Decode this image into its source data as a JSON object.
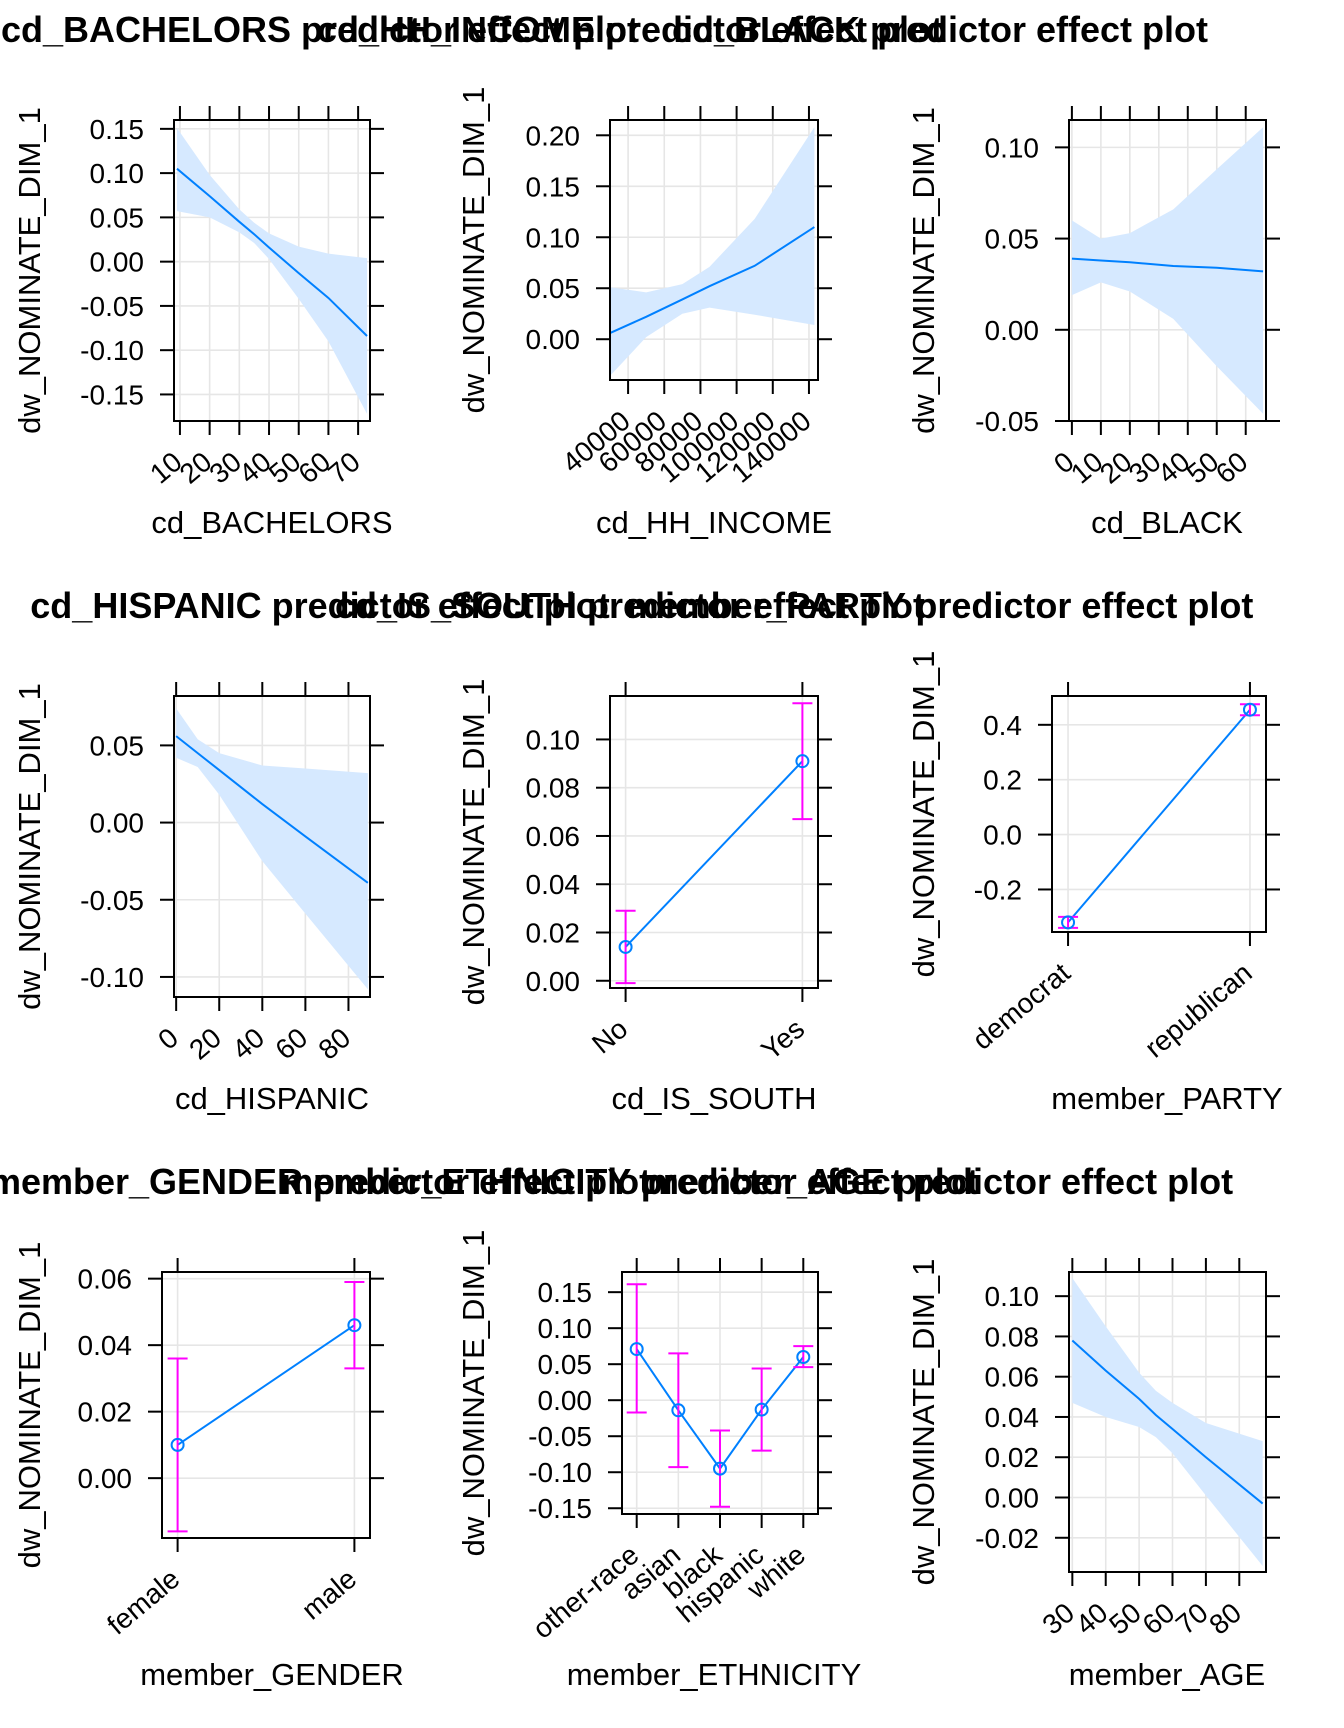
{
  "colors": {
    "line": "#0080ff",
    "band": "#d6e9ff",
    "error_bar": "#ff00ff",
    "point": "#0080ff",
    "grid": "#e6e6e6"
  },
  "chart_data": [
    {
      "type": "line",
      "title": "cd_BACHELORS predictor effect plot",
      "xlabel": "cd_BACHELORS",
      "ylabel": "dw_NOMINATE_DIM_1",
      "xlim": [
        8,
        74
      ],
      "ylim": [
        -0.18,
        0.16
      ],
      "x_ticks": [
        10,
        20,
        30,
        40,
        50,
        60,
        70
      ],
      "x_tick_labels": [
        "10",
        "20",
        "30",
        "40",
        "50",
        "60",
        "70"
      ],
      "y_ticks": [
        -0.15,
        -0.1,
        -0.05,
        0.0,
        0.05,
        0.1,
        0.15
      ],
      "y_tick_labels": [
        "-0.15",
        "-0.10",
        "-0.05",
        "0.00",
        "0.05",
        "0.10",
        "0.15"
      ],
      "x": [
        9,
        20,
        30,
        35,
        40,
        50,
        60,
        73
      ],
      "fit": [
        0.105,
        0.074,
        0.045,
        0.031,
        0.016,
        -0.013,
        -0.041,
        -0.084
      ],
      "lower": [
        0.057,
        0.05,
        0.033,
        0.021,
        0.003,
        -0.042,
        -0.09,
        -0.172
      ],
      "upper": [
        0.151,
        0.098,
        0.059,
        0.044,
        0.032,
        0.017,
        0.009,
        0.004
      ]
    },
    {
      "type": "line",
      "title": "cd_HH_INCOME predictor effect plot",
      "xlabel": "cd_HH_INCOME",
      "ylabel": "dw_NOMINATE_DIM_1",
      "xlim": [
        30000,
        145000
      ],
      "ylim": [
        -0.04,
        0.215
      ],
      "x_ticks": [
        40000,
        60000,
        80000,
        100000,
        120000,
        140000
      ],
      "x_tick_labels": [
        "40000",
        "60000",
        "80000",
        "100000",
        "120000",
        "140000"
      ],
      "y_ticks": [
        0.0,
        0.05,
        0.1,
        0.15,
        0.2
      ],
      "y_tick_labels": [
        "0.00",
        "0.05",
        "0.10",
        "0.15",
        "0.20"
      ],
      "x": [
        30000,
        50000,
        70000,
        85000,
        110000,
        143000
      ],
      "fit": [
        0.006,
        0.022,
        0.039,
        0.052,
        0.072,
        0.11
      ],
      "lower": [
        -0.036,
        0.002,
        0.025,
        0.031,
        0.024,
        0.014
      ],
      "upper": [
        0.051,
        0.046,
        0.054,
        0.071,
        0.118,
        0.208
      ]
    },
    {
      "type": "line",
      "title": "cd_BLACK predictor effect plot",
      "xlabel": "cd_BLACK",
      "ylabel": "dw_NOMINATE_DIM_1",
      "xlim": [
        -1,
        67
      ],
      "ylim": [
        -0.05,
        0.115
      ],
      "x_ticks": [
        0,
        10,
        20,
        30,
        40,
        50,
        60
      ],
      "x_tick_labels": [
        "0",
        "10",
        "20",
        "30",
        "40",
        "50",
        "60"
      ],
      "y_ticks": [
        -0.05,
        0.0,
        0.05,
        0.1
      ],
      "y_tick_labels": [
        "-0.05",
        "0.00",
        "0.05",
        "0.10"
      ],
      "x": [
        0,
        10,
        20,
        35,
        50,
        66
      ],
      "fit": [
        0.039,
        0.038,
        0.037,
        0.035,
        0.034,
        0.032
      ],
      "lower": [
        0.019,
        0.026,
        0.021,
        0.006,
        -0.02,
        -0.046
      ],
      "upper": [
        0.06,
        0.05,
        0.053,
        0.066,
        0.088,
        0.111
      ]
    },
    {
      "type": "line",
      "title": "cd_HISPANIC predictor effect plot",
      "xlabel": "cd_HISPANIC",
      "ylabel": "dw_NOMINATE_DIM_1",
      "xlim": [
        -1,
        90
      ],
      "ylim": [
        -0.113,
        0.082
      ],
      "x_ticks": [
        0,
        20,
        40,
        60,
        80
      ],
      "x_tick_labels": [
        "0",
        "20",
        "40",
        "60",
        "80"
      ],
      "y_ticks": [
        -0.1,
        -0.05,
        0.0,
        0.05
      ],
      "y_tick_labels": [
        "-0.10",
        "-0.05",
        "0.00",
        "0.05"
      ],
      "x": [
        0,
        10,
        20,
        40,
        60,
        89
      ],
      "fit": [
        0.056,
        0.045,
        0.034,
        0.012,
        -0.009,
        -0.039
      ],
      "lower": [
        0.042,
        0.036,
        0.018,
        -0.025,
        -0.059,
        -0.108
      ],
      "upper": [
        0.074,
        0.054,
        0.045,
        0.037,
        0.035,
        0.032
      ]
    },
    {
      "type": "scatter",
      "title": "cd_IS_SOUTH predictor effect plot",
      "xlabel": "cd_IS_SOUTH",
      "ylabel": "dw_NOMINATE_DIM_1",
      "ylim": [
        -0.003,
        0.118
      ],
      "categories": [
        "No",
        "Yes"
      ],
      "y_ticks": [
        0.0,
        0.02,
        0.04,
        0.06,
        0.08,
        0.1
      ],
      "y_tick_labels": [
        "0.00",
        "0.02",
        "0.04",
        "0.06",
        "0.08",
        "0.10"
      ],
      "fit": [
        0.014,
        0.091
      ],
      "lower": [
        -0.001,
        0.067
      ],
      "upper": [
        0.029,
        0.115
      ]
    },
    {
      "type": "scatter",
      "title": "member_PARTY predictor effect plot",
      "xlabel": "member_PARTY",
      "ylabel": "dw_NOMINATE_DIM_1",
      "ylim": [
        -0.355,
        0.505
      ],
      "categories": [
        "democrat",
        "republican"
      ],
      "y_ticks": [
        -0.2,
        0.0,
        0.2,
        0.4
      ],
      "y_tick_labels": [
        "-0.2",
        "0.0",
        "0.2",
        "0.4"
      ],
      "fit": [
        -0.32,
        0.455
      ],
      "lower": [
        -0.34,
        0.435
      ],
      "upper": [
        -0.3,
        0.475
      ]
    },
    {
      "type": "scatter",
      "title": "member_GENDER predictor effect plot",
      "xlabel": "member_GENDER",
      "ylabel": "dw_NOMINATE_DIM_1",
      "ylim": [
        -0.018,
        0.062
      ],
      "categories": [
        "female",
        "male"
      ],
      "y_ticks": [
        0.0,
        0.02,
        0.04,
        0.06
      ],
      "y_tick_labels": [
        "0.00",
        "0.02",
        "0.04",
        "0.06"
      ],
      "fit": [
        0.01,
        0.046
      ],
      "lower": [
        -0.016,
        0.033
      ],
      "upper": [
        0.036,
        0.059
      ]
    },
    {
      "type": "scatter",
      "title": "member_ETHNICITY predictor effect plot",
      "xlabel": "member_ETHNICITY",
      "ylabel": "dw_NOMINATE_DIM_1",
      "ylim": [
        -0.158,
        0.178
      ],
      "categories": [
        "other-race",
        "asian",
        "black",
        "hispanic",
        "white"
      ],
      "y_ticks": [
        -0.15,
        -0.1,
        -0.05,
        0.0,
        0.05,
        0.1,
        0.15
      ],
      "y_tick_labels": [
        "-0.15",
        "-0.10",
        "-0.05",
        "0.00",
        "0.05",
        "0.10",
        "0.15"
      ],
      "fit": [
        0.071,
        -0.014,
        -0.095,
        -0.013,
        0.06
      ],
      "lower": [
        -0.017,
        -0.093,
        -0.148,
        -0.07,
        0.046
      ],
      "upper": [
        0.161,
        0.065,
        -0.042,
        0.044,
        0.075
      ]
    },
    {
      "type": "line",
      "title": "member_AGE predictor effect plot",
      "xlabel": "member_AGE",
      "ylabel": "dw_NOMINATE_DIM_1",
      "xlim": [
        29,
        88
      ],
      "ylim": [
        -0.037,
        0.112
      ],
      "x_ticks": [
        30,
        40,
        50,
        60,
        70,
        80
      ],
      "x_tick_labels": [
        "30",
        "40",
        "50",
        "60",
        "70",
        "80"
      ],
      "y_ticks": [
        -0.02,
        0.0,
        0.02,
        0.04,
        0.06,
        0.08,
        0.1
      ],
      "y_tick_labels": [
        "-0.02",
        "0.00",
        "0.02",
        "0.04",
        "0.06",
        "0.08",
        "0.10"
      ],
      "x": [
        30,
        40,
        50,
        55,
        60,
        70,
        87
      ],
      "fit": [
        0.078,
        0.063,
        0.049,
        0.041,
        0.034,
        0.02,
        -0.003
      ],
      "lower": [
        0.047,
        0.04,
        0.035,
        0.03,
        0.022,
        0.001,
        -0.034
      ],
      "upper": [
        0.109,
        0.085,
        0.062,
        0.053,
        0.047,
        0.037,
        0.028
      ]
    }
  ]
}
